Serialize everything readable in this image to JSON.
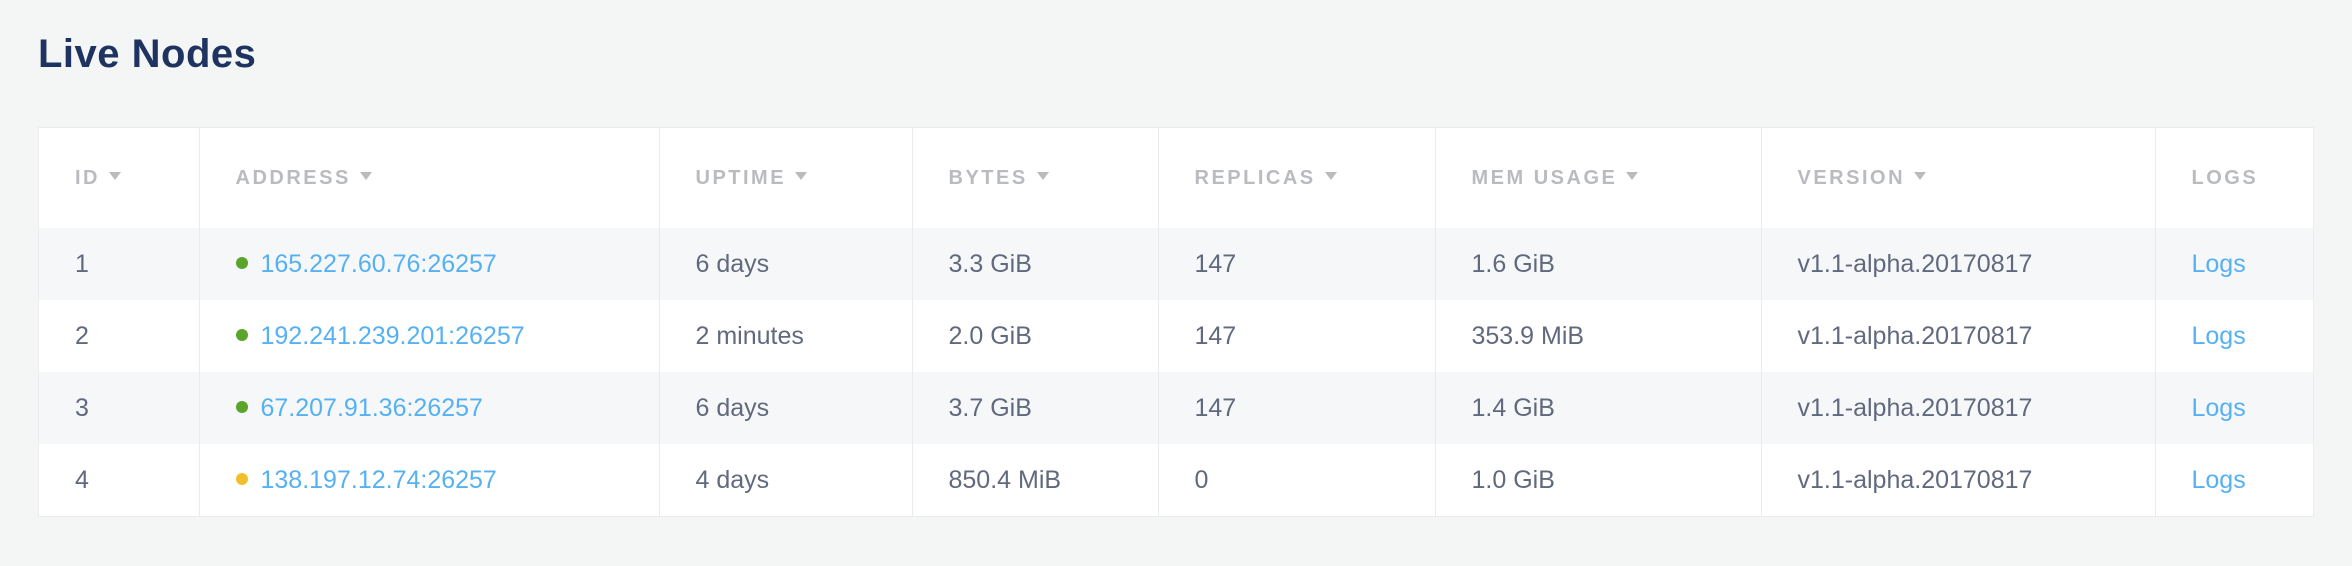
{
  "page": {
    "title": "Live Nodes"
  },
  "colors": {
    "page-bg": "#f4f5f5",
    "title": "#1e3360",
    "link": "#55b1f2",
    "dot-green": "#5aa529",
    "dot-yellow": "#f2bf2c",
    "header-text": "#b9bbbe",
    "body-text": "#60697d",
    "stripe": "#f6f7f8",
    "cell-border": "#eaebec",
    "outer-border": "#ececec"
  },
  "table": {
    "columns": [
      {
        "label": "ID",
        "sortable": true
      },
      {
        "label": "ADDRESS",
        "sortable": true
      },
      {
        "label": "UPTIME",
        "sortable": true
      },
      {
        "label": "BYTES",
        "sortable": true
      },
      {
        "label": "REPLICAS",
        "sortable": true
      },
      {
        "label": "MEM USAGE",
        "sortable": true
      },
      {
        "label": "VERSION",
        "sortable": true
      },
      {
        "label": "LOGS",
        "sortable": false
      }
    ],
    "rows": [
      {
        "id": "1",
        "status_dot": "green",
        "address": "165.227.60.76:26257",
        "uptime": "6 days",
        "bytes": "3.3 GiB",
        "replicas": "147",
        "mem_usage": "1.6 GiB",
        "version": "v1.1-alpha.20170817",
        "logs_label": "Logs"
      },
      {
        "id": "2",
        "status_dot": "green",
        "address": "192.241.239.201:26257",
        "uptime": "2 minutes",
        "bytes": "2.0 GiB",
        "replicas": "147",
        "mem_usage": "353.9 MiB",
        "version": "v1.1-alpha.20170817",
        "logs_label": "Logs"
      },
      {
        "id": "3",
        "status_dot": "green",
        "address": "67.207.91.36:26257",
        "uptime": "6 days",
        "bytes": "3.7 GiB",
        "replicas": "147",
        "mem_usage": "1.4 GiB",
        "version": "v1.1-alpha.20170817",
        "logs_label": "Logs"
      },
      {
        "id": "4",
        "status_dot": "yellow",
        "address": "138.197.12.74:26257",
        "uptime": "4 days",
        "bytes": "850.4 MiB",
        "replicas": "0",
        "mem_usage": "1.0 GiB",
        "version": "v1.1-alpha.20170817",
        "logs_label": "Logs"
      }
    ]
  }
}
